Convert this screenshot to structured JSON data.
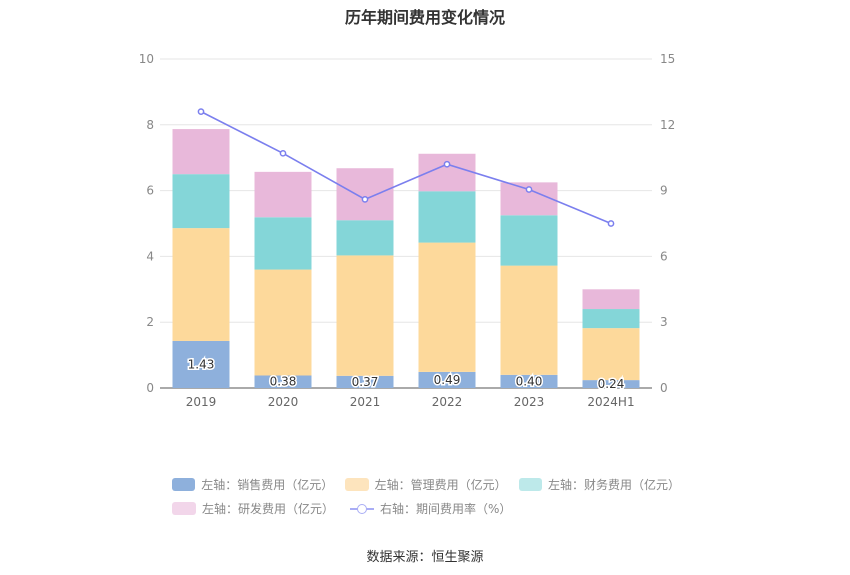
{
  "chart_data": {
    "type": "bar",
    "title": "历年期间费用变化情况",
    "categories": [
      "2019",
      "2020",
      "2021",
      "2022",
      "2023",
      "2024H1"
    ],
    "left_axis": {
      "ylim": [
        0,
        10
      ],
      "ticks": [
        "0",
        "2",
        "4",
        "6",
        "8",
        "10"
      ]
    },
    "right_axis": {
      "ylim": [
        0,
        15
      ],
      "ticks": [
        "0",
        "3",
        "6",
        "9",
        "12",
        "15"
      ]
    },
    "series": [
      {
        "name": "左轴：销售费用（亿元）",
        "stack": true,
        "color": "#8eb0dc",
        "values": [
          1.43,
          0.38,
          0.37,
          0.49,
          0.4,
          0.24
        ],
        "labels": [
          "1.43",
          "0.38",
          "0.37",
          "0.49",
          "0.40",
          "0.24"
        ]
      },
      {
        "name": "左轴：管理费用（亿元）",
        "stack": true,
        "color": "#fdd99b",
        "values": [
          3.43,
          3.22,
          3.66,
          3.93,
          3.32,
          1.58
        ]
      },
      {
        "name": "左轴：财务费用（亿元）",
        "stack": true,
        "color": "#84d6d8",
        "values": [
          1.64,
          1.59,
          1.07,
          1.56,
          1.53,
          0.58
        ]
      },
      {
        "name": "左轴：研发费用（亿元）",
        "stack": true,
        "color": "#e8b8da",
        "values": [
          1.37,
          1.38,
          1.58,
          1.14,
          1.0,
          0.6
        ]
      },
      {
        "name": "右轴：期间费用率（%）",
        "type": "line",
        "axis": "right",
        "color": "#7b7fee",
        "values": [
          12.6,
          10.7,
          8.6,
          10.2,
          9.05,
          7.5
        ]
      }
    ],
    "legend_colors": [
      "#8eb0dc",
      "#fde4bd",
      "#bde9ea",
      "#f2d6ea",
      "#a9adf5"
    ]
  },
  "source": "数据来源：恒生聚源"
}
